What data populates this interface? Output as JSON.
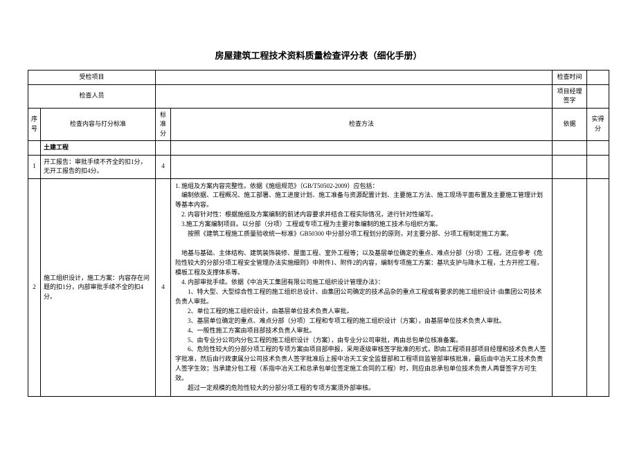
{
  "page": {
    "title": "房屋建筑工程技术资料质量检查评分表（细化手册）",
    "header_fontsize": 13,
    "body_fontsize": 9,
    "background_color": "#ffffff",
    "border_color": "#000000"
  },
  "info_rows": {
    "project_label": "受检项目",
    "project_value": "",
    "check_time_label": "检查时间",
    "check_time_value": "",
    "inspector_label": "检查人员",
    "inspector_value": "",
    "pm_sign_label": "项目经理签字",
    "pm_sign_value": ""
  },
  "columns": {
    "seq": "序号",
    "content": "检查内容与打分标准",
    "std_score": "标准分",
    "method": "检查方法",
    "basis": "依据",
    "actual": "实得分"
  },
  "section": {
    "civil": "土建工程"
  },
  "rows": [
    {
      "seq": "1",
      "content": "开工报告：审批手续不齐全的扣1分，无开工报告的扣4分。",
      "std_score": "4",
      "method": "",
      "basis": "",
      "actual": ""
    },
    {
      "seq": "2",
      "content": "施工组织设计，施工方案：内容存在问题的扣1分，内部审批手续不全的扣4分。",
      "std_score": "4",
      "method_lines": [
        "1. 施组及方案内容完整性。依据《施组规范》（GB/T50502-2009）应包括：",
        "　编制依据、工程概况、施工部署、施工进度计划、施工准备与资源配置计划、主要施工方法、施工现场平面布置及主要施工管理计划等基本内容。",
        "　2. 内容针对性：根据施组及方案编制的前述内容要求并结合工程实际情况，进行针对性编写。",
        "　3.施工方案编制项目。以分部（分项）工程或专项工程为主要对象编制的施工技术与组织方案。",
        "　　按照《建筑工程施工质量验收统一标准》GB50300 中分部分项工程划分的原则，对主要分部、分项工程制定施工方案。",
        "",
        "　地基与基础、主体结构、建筑装饰装修、屋面工程、室外工程等；以及基层单位确定的重点、难点分部（分项）工程。还应参考《危险性较大的分部分项工程安全管理办法实施细则》中附件1、附件2的内容，编制专项施工方案：基坑支护与降水工程，土方开挖工程，模板工程及支撑体系等。",
        "　4. 内部审批手续。依据《中冶天工集团有限公司施工组织设计管理办法》：",
        "　　1、特大型、大型综合性工程的施工组织总设计、由集团公司确定的技术品杂的重点工程或有要求的施工组织设计·由集团公司技术负责人审批。",
        "　　2、单位工程的施工组织设计，由基层单位技术负责人审批。",
        "　　3、基层单位确定的重点、难点分部（分项）工程和专项工程的施工组织设计（方案），由基层单位技术负责人审批。",
        "　　4、一般性施工方案由项目部技术负责人审批。",
        "　　5、由专业分公司内分包工程的施工组织设计（方案），由专业分公司审批，再由总包单位核准备案。",
        "　　6、危险性较大的分部分项工程的专项方案由项目部申报，采用逐级审核签字批准的形式，即由工程项目部项目经理和技术负责人签字批准，然后由行政隶属分公司技术负责人签字批准后上报中冶天工安全监督部和工程项目监管部审核批准，最后由中冶天工技术负责人签字生效；当承建分包工程（系指中冶天工和总承包单位签定施工合同的工程）时，则应由总承包单位技术负责人再督签字方可生效。",
        "　　超过一定规模的危险性较大的分部分项工程的专项方案须外部审核。"
      ],
      "basis": "",
      "actual": ""
    }
  ]
}
